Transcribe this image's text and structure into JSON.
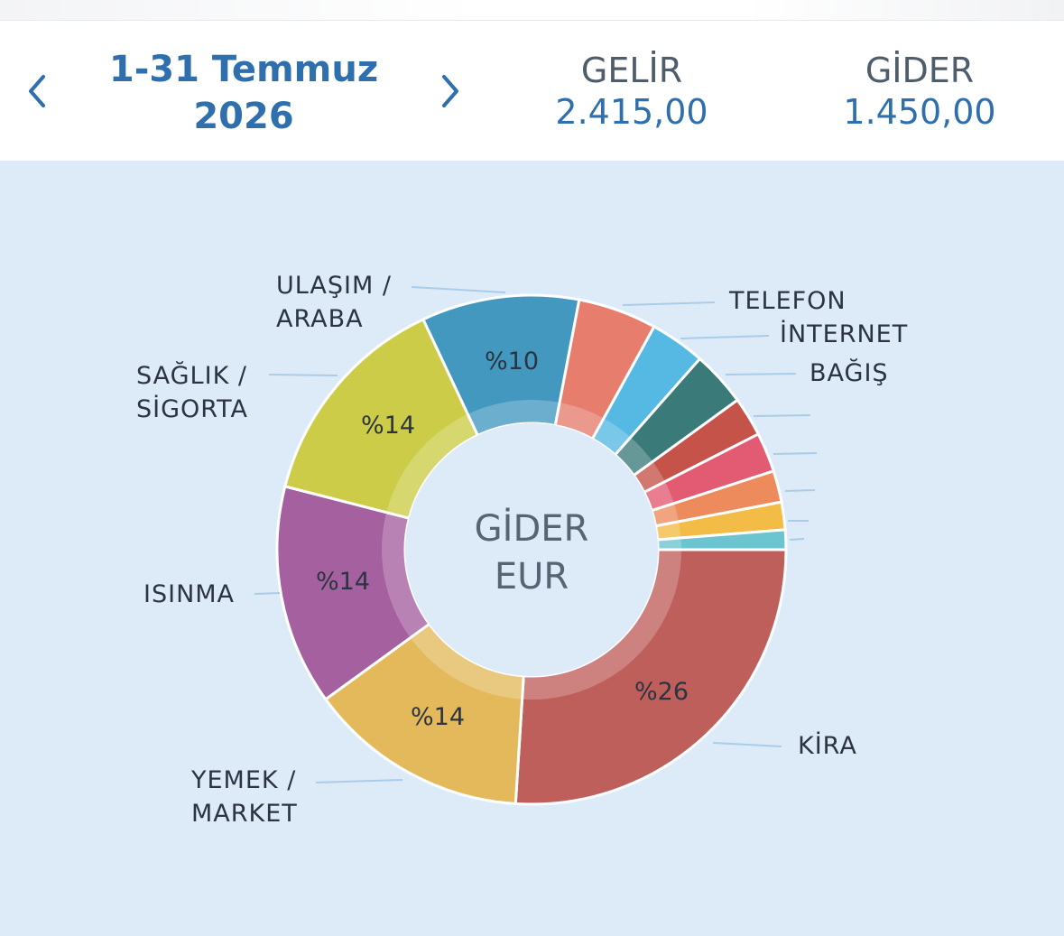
{
  "header": {
    "period_line1": "1-31 Temmuz",
    "period_line2": "2026",
    "income": {
      "title": "GELİR",
      "value": "2.415,00"
    },
    "expense": {
      "title": "GİDER",
      "value": "1.450,00"
    }
  },
  "icons": {
    "prev": "chevron-left-icon",
    "next": "chevron-right-icon"
  },
  "colors": {
    "accent": "#2f6fad",
    "panel_bg": "#ddeaf7"
  },
  "chart_data": {
    "type": "pie",
    "style": "donut",
    "center_label": [
      "GİDER",
      "EUR"
    ],
    "slices": [
      {
        "label": [
          "KİRA"
        ],
        "percent": 26,
        "percent_text": "%26",
        "color": "#bf5f5c"
      },
      {
        "label": [
          "YEMEK /",
          "MARKET"
        ],
        "percent": 14,
        "percent_text": "%14",
        "color": "#e3b95b"
      },
      {
        "label": [
          "ISINMA"
        ],
        "percent": 14,
        "percent_text": "%14",
        "color": "#a4609f"
      },
      {
        "label": [
          "SAĞLIK /",
          "SİGORTA"
        ],
        "percent": 14,
        "percent_text": "%14",
        "color": "#cccc48"
      },
      {
        "label": [
          "ULAŞIM /",
          "ARABA"
        ],
        "percent": 10,
        "percent_text": "%10",
        "color": "#4398bf"
      },
      {
        "label": [
          "TELEFON"
        ],
        "percent": 5,
        "color": "#e67d6d"
      },
      {
        "label": [
          "İNTERNET"
        ],
        "percent": 3.5,
        "color": "#55b9e3"
      },
      {
        "label": [
          "BAĞIŞ"
        ],
        "percent": 3.5,
        "color": "#3a7b79"
      },
      {
        "label": [],
        "percent": 2.5,
        "color": "#c5534a"
      },
      {
        "label": [],
        "percent": 2.5,
        "color": "#e35a73"
      },
      {
        "label": [],
        "percent": 2,
        "color": "#ee8b5d"
      },
      {
        "label": [],
        "percent": 1.75,
        "color": "#f2bc46"
      },
      {
        "label": [],
        "percent": 1.25,
        "color": "#6cc4d0"
      }
    ]
  }
}
